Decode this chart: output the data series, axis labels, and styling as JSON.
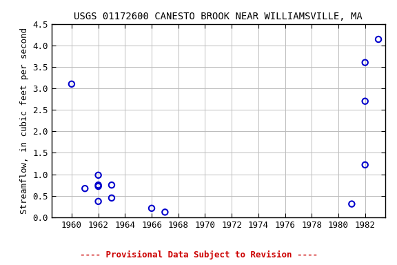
{
  "title": "USGS 01172600 CANESTO BROOK NEAR WILLIAMSVILLE, MA",
  "ylabel": "Streamflow, in cubic feet per second",
  "x_data": [
    1960,
    1961,
    1962,
    1962,
    1962,
    1962,
    1963,
    1963,
    1966,
    1967,
    1981,
    1982,
    1982,
    1982,
    1983
  ],
  "y_data": [
    3.1,
    0.67,
    0.37,
    0.98,
    0.72,
    0.75,
    0.75,
    0.45,
    0.21,
    0.12,
    0.31,
    2.7,
    1.22,
    3.6,
    4.14
  ],
  "xlim": [
    1958.5,
    1983.5
  ],
  "ylim": [
    0.0,
    4.5
  ],
  "xticks": [
    1960,
    1962,
    1964,
    1966,
    1968,
    1970,
    1972,
    1974,
    1976,
    1978,
    1980,
    1982
  ],
  "yticks": [
    0.0,
    0.5,
    1.0,
    1.5,
    2.0,
    2.5,
    3.0,
    3.5,
    4.0,
    4.5
  ],
  "marker_color": "#0000CC",
  "marker_size": 6,
  "marker_linewidth": 1.5,
  "grid_color": "#bbbbbb",
  "background_color": "#ffffff",
  "provisional_text": "---- Provisional Data Subject to Revision ----",
  "provisional_color": "#cc0000",
  "provisional_fontsize": 9,
  "title_fontsize": 10,
  "label_fontsize": 9,
  "tick_fontsize": 9
}
